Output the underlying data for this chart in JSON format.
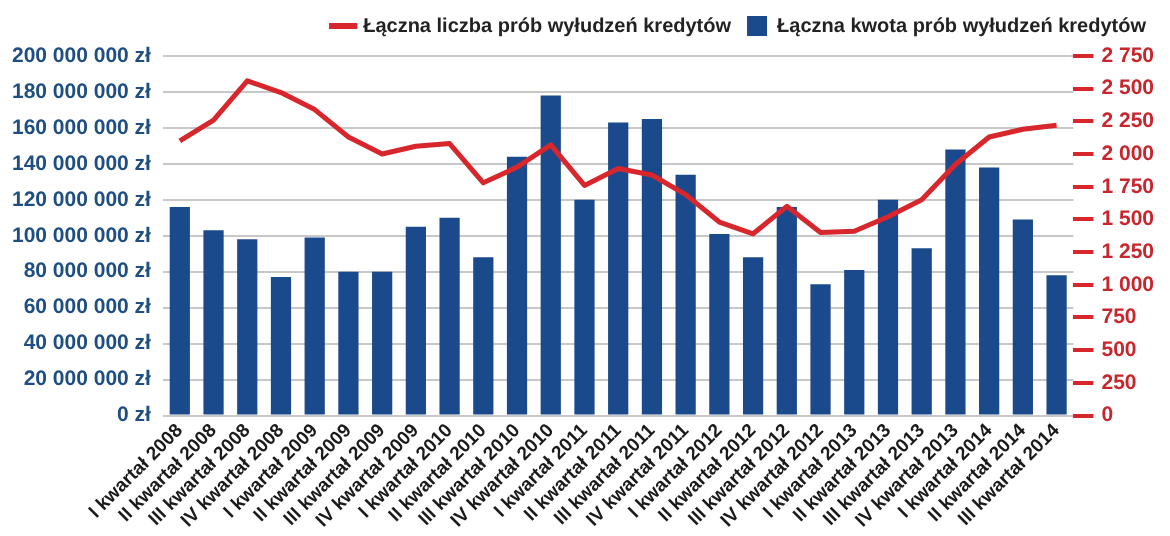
{
  "chart_data": {
    "type": "bar",
    "categories": [
      "I kwartał 2008",
      "II kwartał 2008",
      "III kwartał 2008",
      "IV kwartał 2008",
      "I kwartał 2009",
      "II kwartał 2009",
      "III kwartał 2009",
      "IV kwartał 2009",
      "I kwartał 2010",
      "II kwartał 2010",
      "III kwartał 2010",
      "IV kwartał 2010",
      "I kwartał 2011",
      "II kwartał 2011",
      "III kwartał 2011",
      "IV kwartał 2011",
      "I kwartał 2012",
      "II kwartał 2012",
      "III kwartał 2012",
      "IV kwartał 2012",
      "I kwartał 2013",
      "II kwartał 2013",
      "III kwartał 2013",
      "IV kwartał 2013",
      "I kwartał 2014",
      "II kwartał 2014",
      "III kwartał 2014"
    ],
    "series": [
      {
        "name": "Łączna liczba prób wyłudzeń kredytów",
        "type": "line",
        "axis": "y2",
        "color": "#d7262c",
        "values": [
          2100,
          2260,
          2560,
          2470,
          2340,
          2130,
          2000,
          2060,
          2080,
          1780,
          1900,
          2070,
          1760,
          1890,
          1840,
          1690,
          1480,
          1390,
          1600,
          1400,
          1410,
          1520,
          1650,
          1920,
          2130,
          2190,
          2220
        ]
      },
      {
        "name": "Łączna kwota prób wyłudzeń kredytów",
        "color": "#1b4a8c",
        "values": [
          116000000,
          103000000,
          98000000,
          77000000,
          99000000,
          80000000,
          80000000,
          105000000,
          110000000,
          88000000,
          144000000,
          178000000,
          120000000,
          163000000,
          165000000,
          134000000,
          101000000,
          88000000,
          116000000,
          73000000,
          81000000,
          120000000,
          93000000,
          148000000,
          138000000,
          109000000,
          78000000
        ]
      }
    ],
    "ylim": [
      0,
      200000000
    ],
    "yticks": [
      {
        "value": 0,
        "label": "0 zł"
      },
      {
        "value": 20000000,
        "label": "20 000 000 zł"
      },
      {
        "value": 40000000,
        "label": "40 000 000 zł"
      },
      {
        "value": 60000000,
        "label": "60 000 000 zł"
      },
      {
        "value": 80000000,
        "label": "80 000 000 zł"
      },
      {
        "value": 100000000,
        "label": "100 000 000 zł"
      },
      {
        "value": 120000000,
        "label": "120 000 000 zł"
      },
      {
        "value": 140000000,
        "label": "140 000 000 zł"
      },
      {
        "value": 160000000,
        "label": "160 000 000 zł"
      },
      {
        "value": 180000000,
        "label": "180 000 000 zł"
      },
      {
        "value": 200000000,
        "label": "200 000 000 zł"
      }
    ],
    "y2lim": [
      0,
      2750
    ],
    "y2ticks": [
      0,
      250,
      500,
      750,
      {
        "value": 1000,
        "label": "1 000"
      },
      {
        "value": 1250,
        "label": "1 250"
      },
      {
        "value": 1500,
        "label": "1 500"
      },
      {
        "value": 1750,
        "label": "1 750"
      },
      {
        "value": 2000,
        "label": "2 000"
      },
      {
        "value": 2250,
        "label": "2 250"
      },
      {
        "value": 2500,
        "label": "2 500"
      },
      {
        "value": 2750,
        "label": "2 750"
      }
    ],
    "grid": "y",
    "legend": "top",
    "marker": "none"
  }
}
